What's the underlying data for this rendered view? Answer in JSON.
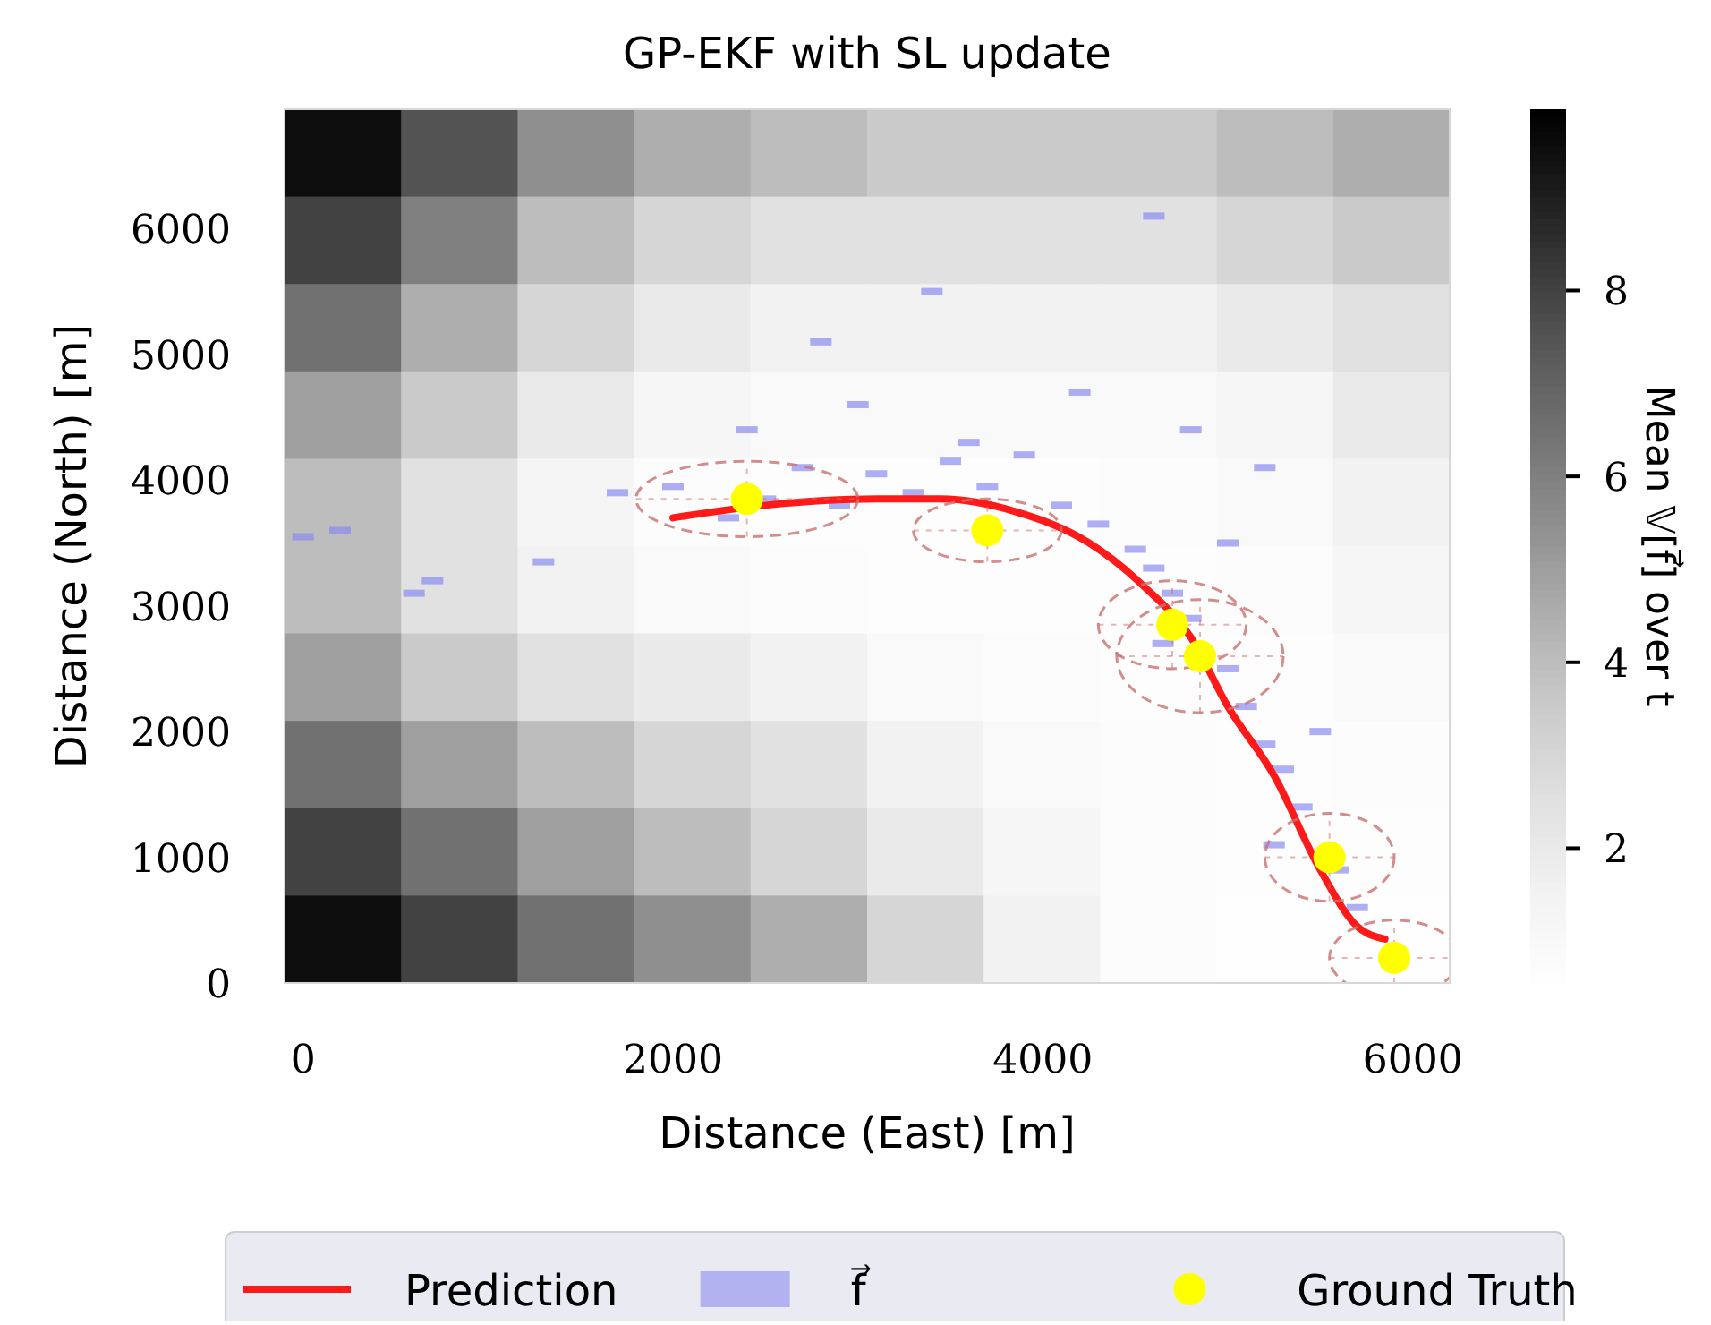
{
  "chart_data": [
    {
      "type": "heatmap",
      "clabel": "Mean 𝕍[f⃗] over t",
      "clim": [
        0.55,
        9.95
      ],
      "cticks": [
        2,
        4,
        6,
        8
      ],
      "categories": [
        null,
        null,
        null,
        null,
        null,
        null,
        null,
        null,
        null,
        null
      ],
      "y_categories": [
        null,
        null,
        null,
        null,
        null,
        null,
        null,
        null,
        null,
        null
      ],
      "cells": [
        [
          9.5,
          7.5,
          5.5,
          4.5,
          4,
          3.5,
          3.5,
          3.5,
          4,
          4.5
        ],
        [
          8,
          6,
          4,
          3,
          2.5,
          2.5,
          2.5,
          2.5,
          3,
          3.5
        ],
        [
          6.5,
          4.5,
          3,
          2,
          1.5,
          1.5,
          1.5,
          1.5,
          2,
          2.5
        ],
        [
          5,
          3.5,
          2,
          1.2,
          1,
          1,
          1,
          1,
          1.2,
          2
        ],
        [
          4,
          2.5,
          1.3,
          0.8,
          0.7,
          0.7,
          0.7,
          0.8,
          1,
          1.5
        ],
        [
          4,
          2.5,
          1.5,
          1,
          0.8,
          0.7,
          0.7,
          0.7,
          0.8,
          1.2
        ],
        [
          5,
          3.5,
          2.5,
          2,
          1.5,
          1,
          0.8,
          0.7,
          0.7,
          1
        ],
        [
          6.5,
          5,
          4,
          3,
          2.5,
          1.5,
          1,
          0.8,
          0.7,
          0.8
        ],
        [
          8,
          6.5,
          5,
          4,
          3,
          2,
          1.2,
          0.8,
          0.7,
          0.7
        ],
        [
          9.5,
          8,
          6.5,
          5.5,
          4.5,
          3,
          1.5,
          0.8,
          0.6,
          0.6
        ]
      ]
    },
    {
      "type": "line",
      "title": "GP-EKF with SL update",
      "xlabel": "Distance (East) [m]",
      "ylabel": "Distance (North) [m]",
      "xlim": [
        -100,
        6200
      ],
      "ylim": [
        0,
        6950
      ],
      "xticks": [
        0,
        2000,
        4000,
        6000
      ],
      "yticks": [
        0,
        1000,
        2000,
        3000,
        4000,
        5000,
        6000
      ],
      "legend": "bottom",
      "grid": false,
      "series": [
        {
          "name": "Prediction",
          "type": "line",
          "color": "#ff1a1a",
          "x": [
            2000,
            2500,
            3100,
            3450,
            3850,
            4250,
            4550,
            4800,
            5000,
            5250,
            5500,
            5700,
            5850
          ],
          "values": [
            3700,
            3800,
            3850,
            3850,
            3750,
            3500,
            3150,
            2750,
            2200,
            1650,
            900,
            450,
            350
          ]
        },
        {
          "name": "f⃗",
          "type": "scatter",
          "marker": "square",
          "color": "#8c8cf0",
          "x": [
            0,
            200,
            600,
            700,
            1300,
            1700,
            2000,
            2300,
            2500,
            2700,
            2900,
            3100,
            3300,
            3500,
            3700,
            3900,
            4100,
            4300,
            4500,
            4600,
            4700,
            4800,
            4650,
            5000,
            5100,
            5200,
            5300,
            5400,
            5250,
            5600,
            5700,
            2400,
            3000,
            3600,
            4200,
            4800,
            5200,
            2800,
            3400,
            4600,
            5000,
            5500
          ],
          "values": [
            3550,
            3600,
            3100,
            3200,
            3350,
            3900,
            3950,
            3700,
            3850,
            4100,
            3800,
            4050,
            3900,
            4150,
            3950,
            4200,
            3800,
            3650,
            3450,
            3300,
            3100,
            2900,
            2700,
            2500,
            2200,
            1900,
            1700,
            1400,
            1100,
            900,
            600,
            4400,
            4600,
            4300,
            4700,
            4400,
            4100,
            5100,
            5500,
            6100,
            3500,
            2000
          ]
        },
        {
          "name": "Ground Truth",
          "type": "scatter",
          "marker": "circle",
          "color": "#ffff00",
          "x": [
            2400,
            3700,
            4700,
            4850,
            5550,
            5900
          ],
          "values": [
            3850,
            3600,
            2850,
            2600,
            1000,
            200
          ],
          "xerrors": [
            600,
            400,
            400,
            450,
            350,
            350
          ],
          "errors": [
            300,
            250,
            350,
            450,
            350,
            300
          ]
        }
      ]
    }
  ]
}
